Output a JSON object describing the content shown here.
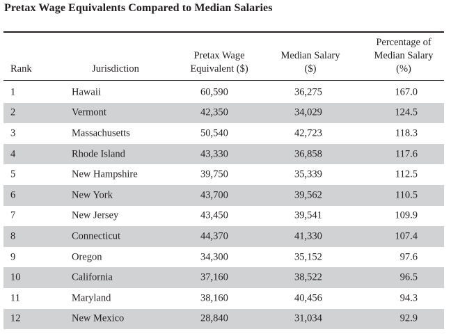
{
  "title": "Pretax Wage Equivalents Compared to Median Salaries",
  "table": {
    "headers": {
      "rank": "Rank",
      "jurisdiction": "Jurisdiction",
      "pretax_line1": "Pretax Wage",
      "pretax_line2": "Equivalent ($)",
      "median_line1": "Median Salary",
      "median_line2": "($)",
      "pct_line1": "Percentage of",
      "pct_line2": "Median Salary",
      "pct_line3": "(%)"
    },
    "rows": [
      {
        "rank": "1",
        "jurisdiction": "Hawaii",
        "pretax": "60,590",
        "median": "36,275",
        "pct": "167.0"
      },
      {
        "rank": "2",
        "jurisdiction": "Vermont",
        "pretax": "42,350",
        "median": "34,029",
        "pct": "124.5"
      },
      {
        "rank": "3",
        "jurisdiction": "Massachusetts",
        "pretax": "50,540",
        "median": "42,723",
        "pct": "118.3"
      },
      {
        "rank": "4",
        "jurisdiction": "Rhode Island",
        "pretax": "43,330",
        "median": "36,858",
        "pct": "117.6"
      },
      {
        "rank": "5",
        "jurisdiction": "New Hampshire",
        "pretax": "39,750",
        "median": "35,339",
        "pct": "112.5"
      },
      {
        "rank": "6",
        "jurisdiction": "New York",
        "pretax": "43,700",
        "median": "39,562",
        "pct": "110.5"
      },
      {
        "rank": "7",
        "jurisdiction": "New Jersey",
        "pretax": "43,450",
        "median": "39,541",
        "pct": "109.9"
      },
      {
        "rank": "8",
        "jurisdiction": "Connecticut",
        "pretax": "44,370",
        "median": "41,330",
        "pct": "107.4"
      },
      {
        "rank": "9",
        "jurisdiction": "Oregon",
        "pretax": "34,300",
        "median": "35,152",
        "pct": "97.6"
      },
      {
        "rank": "10",
        "jurisdiction": "California",
        "pretax": "37,160",
        "median": "38,522",
        "pct": "96.5"
      },
      {
        "rank": "11",
        "jurisdiction": "Maryland",
        "pretax": "38,160",
        "median": "40,456",
        "pct": "94.3"
      },
      {
        "rank": "12",
        "jurisdiction": "New Mexico",
        "pretax": "28,840",
        "median": "31,034",
        "pct": "92.9"
      }
    ]
  },
  "colors": {
    "text": "#231f20",
    "shaded_row": "#d1d2d4",
    "rule": "#231f20"
  }
}
